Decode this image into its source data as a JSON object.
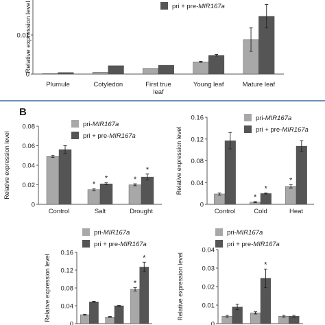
{
  "figure": {
    "panel_b_letter": "B"
  },
  "colors": {
    "pri": "#a8a8a8",
    "pri_pre": "#555555",
    "axis": "#555555",
    "separator": "#3b6aa0"
  },
  "chart_data": [
    {
      "id": "A",
      "type": "bar",
      "title": "",
      "ylabel": "Relative expression level",
      "xlabel": "",
      "ylim": [
        0,
        0.03
      ],
      "yticks": [
        "0",
        "0.01",
        "0.02"
      ],
      "categories": [
        "Plumule",
        "Cotyledon",
        "First true leaf",
        "Young leaf",
        "Mature leaf"
      ],
      "series": [
        {
          "name_prefix": "pri-",
          "name_italic": "MIR167a",
          "values": [
            0.0002,
            0.0007,
            0.0022,
            0.0047,
            0.0132
          ],
          "err": [
            0,
            0,
            0,
            0.0002,
            0.0045
          ]
        },
        {
          "name_prefix": "pri + pre-",
          "name_italic": "MIR167a",
          "values": [
            0.0006,
            0.0032,
            0.0034,
            0.0072,
            0.0222
          ],
          "err": [
            0,
            0,
            0,
            0.0003,
            0.0045
          ]
        }
      ],
      "stars": [],
      "legend_items": [
        1
      ]
    },
    {
      "id": "B1",
      "type": "bar",
      "title": "",
      "ylabel": "Relative expression level",
      "xlabel": "",
      "ylim": [
        0,
        0.08
      ],
      "yticks": [
        "0",
        "0.02",
        "0.04",
        "0.06",
        "0.08"
      ],
      "categories": [
        "Control",
        "Salt",
        "Drought"
      ],
      "series": [
        {
          "name_prefix": "pri-",
          "name_italic": "MIR167a",
          "values": [
            0.049,
            0.015,
            0.02
          ],
          "err": [
            0.001,
            0.001,
            0.001
          ]
        },
        {
          "name_prefix": "pri + pre-",
          "name_italic": "MIR167a",
          "values": [
            0.056,
            0.021,
            0.028
          ],
          "err": [
            0.004,
            0.001,
            0.003
          ]
        }
      ],
      "stars": [
        [
          1,
          0
        ],
        [
          1,
          1
        ],
        [
          2,
          0
        ],
        [
          2,
          1
        ]
      ],
      "legend_items": [
        0,
        1
      ]
    },
    {
      "id": "B2",
      "type": "bar",
      "title": "",
      "ylabel": "Relative expression level",
      "xlabel": "",
      "ylim": [
        0,
        0.16
      ],
      "yticks": [
        "0",
        "0.04",
        "0.08",
        "0.12",
        "0.16"
      ],
      "categories": [
        "Control",
        "Cold",
        "Heat"
      ],
      "series": [
        {
          "name_prefix": "pri-",
          "name_italic": "MIR167a",
          "values": [
            0.019,
            0.004,
            0.033
          ],
          "err": [
            0.002,
            0.001,
            0.003
          ]
        },
        {
          "name_prefix": "pri + pre-",
          "name_italic": "MIR167a",
          "values": [
            0.117,
            0.02,
            0.107
          ],
          "err": [
            0.015,
            0.001,
            0.01
          ]
        }
      ],
      "stars": [
        [
          1,
          0
        ],
        [
          1,
          1
        ],
        [
          2,
          0
        ]
      ],
      "legend_items": [
        0,
        1
      ]
    },
    {
      "id": "B3",
      "type": "bar",
      "title": "",
      "ylabel": "Relative expression level",
      "xlabel": "",
      "ylim": [
        0,
        0.16
      ],
      "yticks": [
        "0",
        "0.04",
        "0.08",
        "0.12",
        "0.16"
      ],
      "categories": [
        "",
        "",
        ""
      ],
      "series": [
        {
          "name_prefix": "pri-",
          "name_italic": "MIR167a",
          "values": [
            0.02,
            0.015,
            0.077
          ],
          "err": [
            0.001,
            0.001,
            0.004
          ]
        },
        {
          "name_prefix": "pri + pre-",
          "name_italic": "MIR167a",
          "values": [
            0.049,
            0.04,
            0.127
          ],
          "err": [
            0.001,
            0.001,
            0.011
          ]
        }
      ],
      "stars": [
        [
          2,
          0
        ],
        [
          2,
          1
        ]
      ],
      "legend_items": [
        0,
        1
      ]
    },
    {
      "id": "B4",
      "type": "bar",
      "title": "",
      "ylabel": "Relative expression level",
      "xlabel": "",
      "ylim": [
        0,
        0.04
      ],
      "yticks": [
        "0",
        "0.01",
        "0.02",
        "0.03",
        "0.04"
      ],
      "categories": [
        "",
        "",
        ""
      ],
      "series": [
        {
          "name_prefix": "pri-",
          "name_italic": "MIR167a",
          "values": [
            0.004,
            0.0058,
            0.004
          ],
          "err": [
            0.0005,
            0.0006,
            0.0005
          ]
        },
        {
          "name_prefix": "pri + pre-",
          "name_italic": "MIR167a",
          "values": [
            0.009,
            0.0245,
            0.004
          ],
          "err": [
            0.0015,
            0.005,
            0.0005
          ]
        }
      ],
      "stars": [
        [
          1,
          1
        ]
      ],
      "legend_items": [
        0,
        1
      ]
    }
  ]
}
